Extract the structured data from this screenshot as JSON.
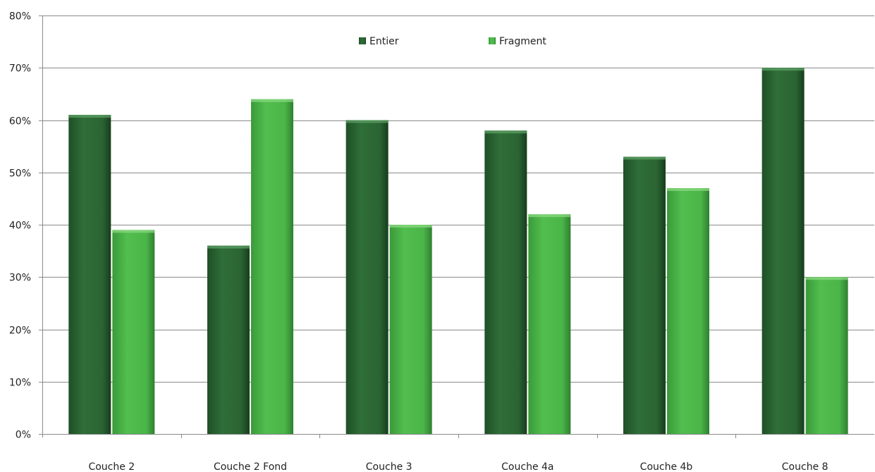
{
  "chart_data": {
    "type": "bar",
    "title": "",
    "xlabel": "",
    "ylabel": "",
    "categories": [
      "Couche 2",
      "Couche 2 Fond",
      "Couche 3",
      "Couche 4a",
      "Couche 4b",
      "Couche 8"
    ],
    "series": [
      {
        "name": "Entier",
        "values": [
          61,
          36,
          60,
          58,
          53,
          70
        ],
        "color": "#2e6b37"
      },
      {
        "name": "Fragment",
        "values": [
          39,
          64,
          40,
          42,
          47,
          30
        ],
        "color": "#4cb84a"
      }
    ],
    "ylim": [
      0,
      80
    ],
    "yticks": [
      "0%",
      "10%",
      "20%",
      "30%",
      "40%",
      "50%",
      "60%",
      "70%",
      "80%"
    ],
    "grid": true,
    "legend": "top-center"
  }
}
